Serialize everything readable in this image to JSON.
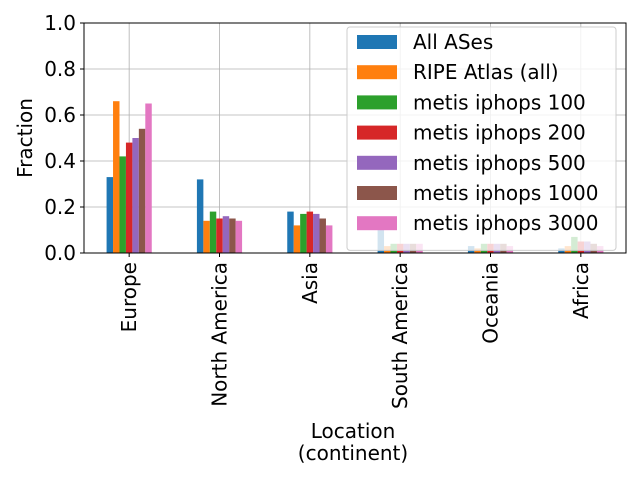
{
  "chart_data": {
    "type": "bar",
    "title": "",
    "xlabel": "Location\n(continent)",
    "ylabel": "Fraction",
    "ylim": [
      0,
      1.0
    ],
    "yticks": [
      0.0,
      0.2,
      0.4,
      0.6,
      0.8,
      1.0
    ],
    "ytick_labels": [
      "0.0",
      "0.2",
      "0.4",
      "0.6",
      "0.8",
      "1.0"
    ],
    "grid": true,
    "legend_position": "upper-right",
    "categories": [
      "Europe",
      "North America",
      "Asia",
      "South America",
      "Oceania",
      "Africa"
    ],
    "series": [
      {
        "name": "All ASes",
        "color": "#1f77b4",
        "values": [
          0.33,
          0.32,
          0.18,
          0.1,
          0.03,
          0.02
        ]
      },
      {
        "name": "RIPE Atlas (all)",
        "color": "#ff7f0e",
        "values": [
          0.66,
          0.14,
          0.12,
          0.03,
          0.02,
          0.03
        ]
      },
      {
        "name": "metis iphops 100",
        "color": "#2ca02c",
        "values": [
          0.42,
          0.18,
          0.17,
          0.04,
          0.04,
          0.07
        ]
      },
      {
        "name": "metis iphops 200",
        "color": "#d62728",
        "values": [
          0.48,
          0.15,
          0.18,
          0.04,
          0.04,
          0.05
        ]
      },
      {
        "name": "metis iphops 500",
        "color": "#9467bd",
        "values": [
          0.5,
          0.16,
          0.17,
          0.04,
          0.04,
          0.05
        ]
      },
      {
        "name": "metis iphops 1000",
        "color": "#8c564b",
        "values": [
          0.54,
          0.15,
          0.15,
          0.04,
          0.04,
          0.04
        ]
      },
      {
        "name": "metis iphops 3000",
        "color": "#e377c2",
        "values": [
          0.65,
          0.14,
          0.12,
          0.04,
          0.03,
          0.03
        ]
      }
    ]
  }
}
